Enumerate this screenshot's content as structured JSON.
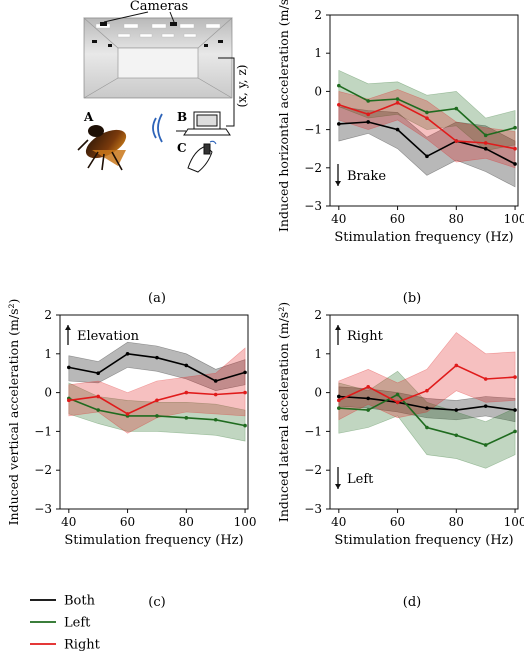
{
  "figure": {
    "panel_labels": [
      "(a)",
      "(b)",
      "(c)",
      "(d)"
    ],
    "photo": {
      "cameras_label": "Cameras",
      "coords_label": "(x, y, z)",
      "label_a": "A",
      "label_b": "B",
      "label_c": "C"
    },
    "legend": [
      {
        "name": "Both",
        "color": "#000000"
      },
      {
        "name": "Left",
        "color": "#1f6b1f"
      },
      {
        "name": "Right",
        "color": "#e01b1b"
      }
    ]
  },
  "chart_data": [
    {
      "panel": "(b)",
      "type": "line",
      "xlabel": "Stimulation frequency (Hz)",
      "ylabel": "Induced horizontal acceleration (m/s²)",
      "xlim": [
        37,
        101
      ],
      "ylim": [
        -3,
        2
      ],
      "xticks": [
        40,
        60,
        80,
        100
      ],
      "yticks": [
        -3,
        -2,
        -1,
        0,
        1,
        2
      ],
      "x": [
        40,
        50,
        60,
        70,
        80,
        90,
        100
      ],
      "annotations": [
        {
          "text": "Brake",
          "arrow": "down"
        }
      ],
      "series": [
        {
          "name": "Both",
          "color": "#000000",
          "values": [
            -0.85,
            -0.8,
            -1.0,
            -1.7,
            -1.3,
            -1.5,
            -1.9
          ],
          "lower": [
            -1.3,
            -1.1,
            -1.5,
            -2.2,
            -1.8,
            -2.1,
            -2.5
          ],
          "upper": [
            -0.4,
            -0.5,
            -0.55,
            -1.2,
            -0.8,
            -0.9,
            -1.3
          ]
        },
        {
          "name": "Left",
          "color": "#1f6b1f",
          "values": [
            0.15,
            -0.25,
            -0.2,
            -0.55,
            -0.45,
            -1.15,
            -0.95
          ],
          "lower": [
            -0.4,
            -0.7,
            -0.6,
            -1.0,
            -0.9,
            -1.55,
            -1.4
          ],
          "upper": [
            0.55,
            0.2,
            0.25,
            -0.1,
            0.0,
            -0.7,
            -0.5
          ]
        },
        {
          "name": "Right",
          "color": "#e01b1b",
          "values": [
            -0.35,
            -0.6,
            -0.3,
            -0.7,
            -1.3,
            -1.35,
            -1.5
          ],
          "lower": [
            -0.75,
            -1.0,
            -0.75,
            -1.25,
            -1.85,
            -1.75,
            -2.0
          ],
          "upper": [
            0.0,
            -0.2,
            0.05,
            -0.25,
            -0.8,
            -0.95,
            -1.05
          ]
        }
      ]
    },
    {
      "panel": "(c)",
      "type": "line",
      "xlabel": "Stimulation frequency (Hz)",
      "ylabel": "Induced vertical acceleration (m/s²)",
      "xlim": [
        37,
        101
      ],
      "ylim": [
        -3,
        2
      ],
      "xticks": [
        40,
        60,
        80,
        100
      ],
      "yticks": [
        -3,
        -2,
        -1,
        0,
        1,
        2
      ],
      "x": [
        40,
        50,
        60,
        70,
        80,
        90,
        100
      ],
      "annotations": [
        {
          "text": "Elevation",
          "arrow": "up"
        }
      ],
      "series": [
        {
          "name": "Both",
          "color": "#000000",
          "values": [
            0.65,
            0.5,
            1.0,
            0.9,
            0.7,
            0.3,
            0.52
          ],
          "lower": [
            0.3,
            0.25,
            0.65,
            0.55,
            0.35,
            0.05,
            0.2
          ],
          "upper": [
            0.95,
            0.8,
            1.3,
            1.2,
            1.0,
            0.6,
            0.85
          ]
        },
        {
          "name": "Left",
          "color": "#1f6b1f",
          "values": [
            -0.15,
            -0.45,
            -0.6,
            -0.6,
            -0.65,
            -0.7,
            -0.85
          ],
          "lower": [
            -0.55,
            -0.8,
            -1.0,
            -1.0,
            -1.05,
            -1.1,
            -1.25
          ],
          "upper": [
            0.25,
            -0.1,
            -0.2,
            -0.25,
            -0.25,
            -0.3,
            -0.45
          ]
        },
        {
          "name": "Right",
          "color": "#e01b1b",
          "values": [
            -0.2,
            -0.1,
            -0.55,
            -0.2,
            0.0,
            -0.05,
            0.0
          ],
          "lower": [
            -0.6,
            -0.5,
            -1.05,
            -0.65,
            -0.5,
            -0.55,
            -0.6
          ],
          "upper": [
            0.2,
            0.3,
            0.0,
            0.3,
            0.4,
            0.5,
            1.15
          ]
        }
      ]
    },
    {
      "panel": "(d)",
      "type": "line",
      "xlabel": "Stimulation frequency (Hz)",
      "ylabel": "Induced lateral acceleration (m/s²)",
      "xlim": [
        37,
        101
      ],
      "ylim": [
        -3,
        2
      ],
      "xticks": [
        40,
        60,
        80,
        100
      ],
      "yticks": [
        -3,
        -2,
        -1,
        0,
        1,
        2
      ],
      "x": [
        40,
        50,
        60,
        70,
        80,
        90,
        100
      ],
      "annotations": [
        {
          "text": "Right",
          "arrow": "up"
        },
        {
          "text": "Left",
          "arrow": "down"
        }
      ],
      "series": [
        {
          "name": "Both",
          "color": "#000000",
          "values": [
            -0.1,
            -0.15,
            -0.25,
            -0.4,
            -0.45,
            -0.35,
            -0.45
          ],
          "lower": [
            -0.35,
            -0.4,
            -0.5,
            -0.65,
            -0.7,
            -0.6,
            -0.75
          ],
          "upper": [
            0.15,
            0.1,
            0.0,
            -0.15,
            -0.2,
            -0.1,
            -0.15
          ]
        },
        {
          "name": "Left",
          "color": "#1f6b1f",
          "values": [
            -0.4,
            -0.45,
            -0.05,
            -0.9,
            -1.1,
            -1.35,
            -1.0
          ],
          "lower": [
            -1.05,
            -0.9,
            -0.6,
            -1.6,
            -1.7,
            -1.95,
            -1.6
          ],
          "upper": [
            0.25,
            0.05,
            0.55,
            -0.25,
            -0.5,
            -0.75,
            -0.4
          ]
        },
        {
          "name": "Right",
          "color": "#e01b1b",
          "values": [
            -0.2,
            0.15,
            -0.25,
            0.05,
            0.7,
            0.35,
            0.4
          ],
          "lower": [
            -0.7,
            -0.3,
            -0.65,
            -0.5,
            0.05,
            -0.25,
            -0.2
          ],
          "upper": [
            0.3,
            0.6,
            0.25,
            0.6,
            1.55,
            1.0,
            1.05
          ]
        }
      ]
    }
  ]
}
